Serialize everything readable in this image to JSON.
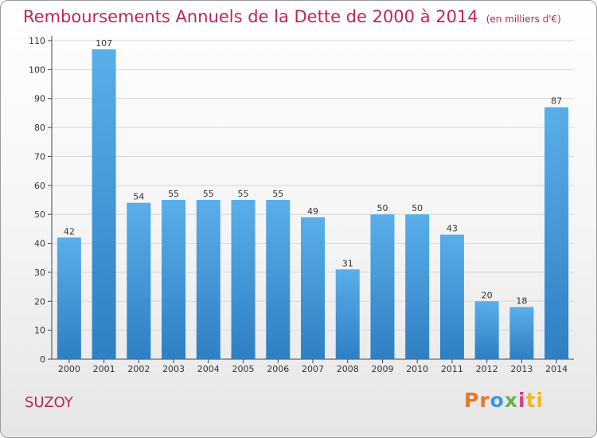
{
  "chart_data": {
    "type": "bar",
    "title": "Remboursements Annuels de la Dette de 2000 à 2014",
    "subtitle": "(en milliers d'€)",
    "categories": [
      "2000",
      "2001",
      "2002",
      "2003",
      "2004",
      "2005",
      "2006",
      "2007",
      "2008",
      "2009",
      "2010",
      "2011",
      "2012",
      "2013",
      "2014"
    ],
    "values": [
      42,
      107,
      54,
      55,
      55,
      55,
      55,
      49,
      31,
      50,
      50,
      43,
      20,
      18,
      87
    ],
    "ylim": [
      0,
      110
    ],
    "yticks": [
      0,
      10,
      20,
      30,
      40,
      50,
      60,
      70,
      80,
      90,
      100,
      110
    ],
    "grid": true,
    "bar_color_top": "#5aaee9",
    "bar_color_bottom": "#2f7fc3"
  },
  "place_name": "SUZOY",
  "logo": [
    "Pr",
    "o",
    "x",
    "i",
    "ti"
  ]
}
